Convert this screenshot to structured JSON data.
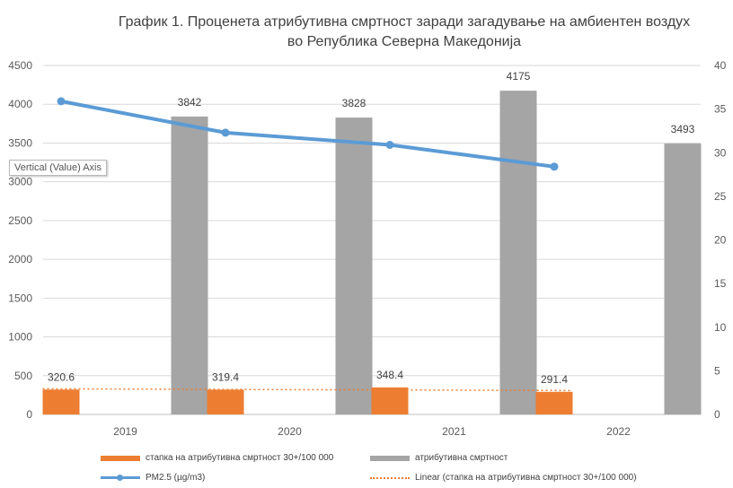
{
  "chart_data": {
    "type": "bar",
    "title_line1": "График 1. Проценета атрибутивна смртност заради загадување на амбиентен воздух",
    "title_line2": "во Република Северна Македонија",
    "categories": [
      "2019",
      "2020",
      "2021",
      "2022"
    ],
    "y_left": {
      "min": 0,
      "max": 4500,
      "step": 500,
      "ticks": [
        "0",
        "500",
        "1000",
        "1500",
        "2000",
        "2500",
        "3000",
        "3500",
        "4000",
        "4500"
      ]
    },
    "y_right": {
      "min": 0,
      "max": 40,
      "step": 5,
      "ticks": [
        "0",
        "5",
        "10",
        "15",
        "20",
        "25",
        "30",
        "35",
        "40"
      ]
    },
    "series": [
      {
        "name": "стапка на атрибутивна смртност 30+/100 000",
        "type": "bar",
        "axis": "left",
        "color": "#ED7D31",
        "values": [
          320.6,
          319.4,
          348.4,
          291.4
        ],
        "labels": [
          "320.6",
          "319.4",
          "348.4",
          "291.4"
        ]
      },
      {
        "name": "атрибутивна смртност",
        "type": "bar",
        "axis": "left",
        "color": "#A5A5A5",
        "values": [
          3842,
          3828,
          4175,
          3493
        ],
        "labels": [
          "3842",
          "3828",
          "4175",
          "3493"
        ]
      },
      {
        "name": "PM2.5 (µg/m3)",
        "type": "line",
        "axis": "right",
        "color": "#5B9BD5",
        "values": [
          35.9,
          32.3,
          30.9,
          28.4
        ]
      },
      {
        "name": "Linear (стапка на атрибутивна смртност 30+/100 000)",
        "type": "trendline",
        "axis": "left",
        "color": "#ED7D31",
        "values": [
          331,
          323,
          316,
          308
        ]
      }
    ],
    "tooltip": "Vertical (Value) Axis",
    "grid": true,
    "legend": "bottom"
  }
}
